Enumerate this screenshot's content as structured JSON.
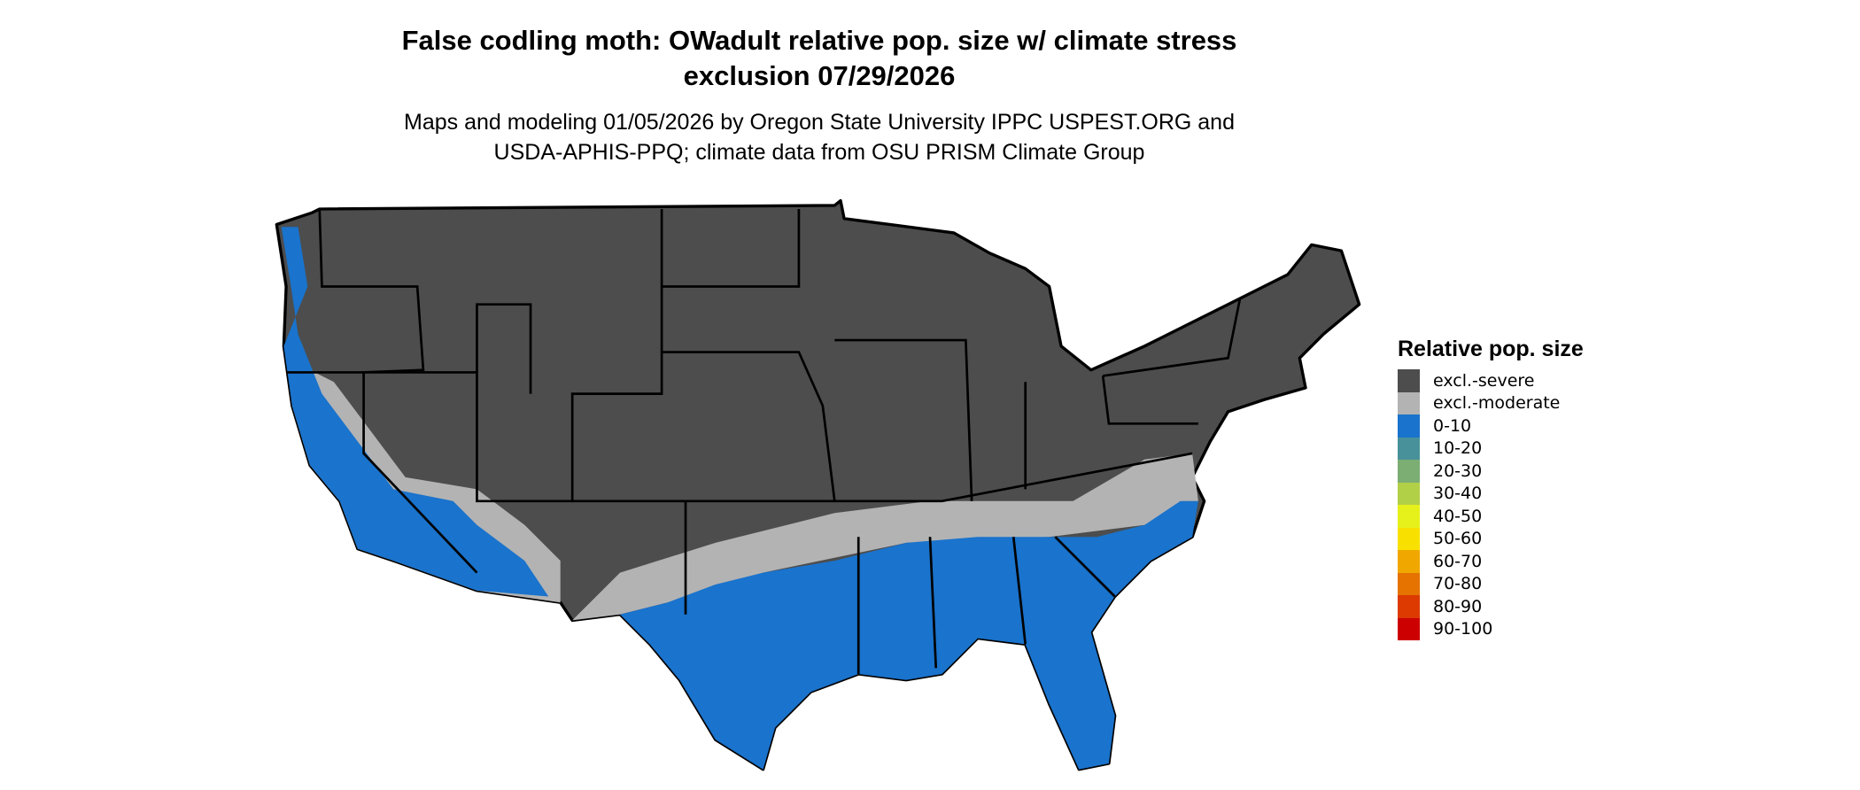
{
  "title": {
    "line1": "False codling moth: OWadult relative pop. size w/ climate stress",
    "line2": "exclusion 07/29/2026"
  },
  "subtitle": {
    "line1": "Maps and modeling 01/05/2026 by Oregon State University IPPC USPEST.ORG and",
    "line2": "USDA-APHIS-PPQ; climate data from OSU PRISM Climate Group"
  },
  "map": {
    "region": "Conterminous United States",
    "colors": {
      "excl_severe": "#4d4d4d",
      "excl_moderate": "#b3b3b3",
      "low": "#1a73cc",
      "border": "#000000"
    }
  },
  "legend": {
    "title": "Relative pop. size",
    "items": [
      {
        "label": "excl.-severe",
        "color": "#4d4d4d"
      },
      {
        "label": "excl.-moderate",
        "color": "#b3b3b3"
      },
      {
        "label": "0-10",
        "color": "#1a73cc"
      },
      {
        "label": "10-20",
        "color": "#48919b"
      },
      {
        "label": "20-30",
        "color": "#7cae74"
      },
      {
        "label": "30-40",
        "color": "#b2d047"
      },
      {
        "label": "40-50",
        "color": "#e6f01a"
      },
      {
        "label": "50-60",
        "color": "#f8e100"
      },
      {
        "label": "60-70",
        "color": "#f0a800"
      },
      {
        "label": "70-80",
        "color": "#e67300"
      },
      {
        "label": "80-90",
        "color": "#dc3a00"
      },
      {
        "label": "90-100",
        "color": "#cc0000"
      }
    ]
  }
}
